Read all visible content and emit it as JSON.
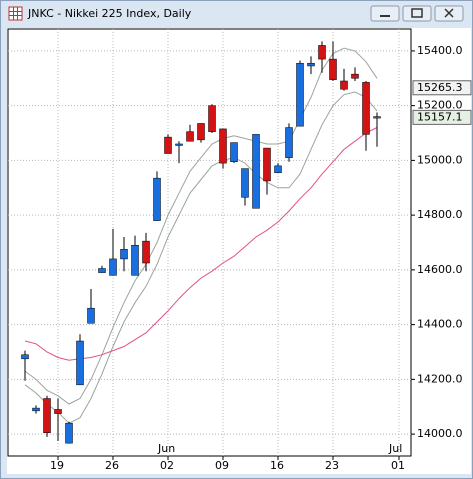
{
  "chart_data": {
    "type": "candlestick",
    "title": "JNKC - Nikkei 225 Index, Daily",
    "categories": [
      null,
      null,
      null,
      "19",
      null,
      null,
      null,
      null,
      "26",
      null,
      null,
      null,
      null,
      "02",
      null,
      null,
      null,
      null,
      "09",
      null,
      null,
      null,
      null,
      "16",
      null,
      null,
      null,
      null,
      "23",
      null,
      null,
      null,
      null,
      null,
      "01"
    ],
    "open": [
      14275,
      14085,
      14130,
      14090,
      13967,
      14180,
      14405,
      14590,
      14580,
      14640,
      14580,
      14705,
      14780,
      15085,
      15055,
      15105,
      15135,
      15200,
      15115,
      14995,
      14865,
      14825,
      15045,
      14955,
      15010,
      15125,
      15345,
      15420,
      15370,
      15290,
      15315,
      15285,
      15155,
      null,
      null
    ],
    "high": [
      14305,
      14105,
      14140,
      14130,
      14045,
      14365,
      14530,
      14615,
      14750,
      14720,
      14725,
      14735,
      14960,
      15095,
      15070,
      15130,
      15135,
      15205,
      15115,
      15065,
      14970,
      15095,
      15045,
      14990,
      15135,
      15365,
      15380,
      15435,
      15435,
      15335,
      15340,
      15290,
      15175,
      null,
      null
    ],
    "low": [
      14195,
      14075,
      13990,
      13975,
      13965,
      14180,
      14405,
      14590,
      14580,
      14595,
      14580,
      14595,
      14780,
      15025,
      14990,
      15070,
      15065,
      15100,
      14970,
      14990,
      14835,
      14825,
      14875,
      14955,
      14995,
      15125,
      15315,
      15320,
      15290,
      15255,
      15290,
      15035,
      15050,
      null,
      null
    ],
    "close": [
      14290,
      14095,
      14005,
      14075,
      14040,
      14340,
      14460,
      14605,
      14640,
      14675,
      14690,
      14625,
      14935,
      15025,
      15060,
      15070,
      15075,
      15105,
      14990,
      15065,
      14970,
      15095,
      14925,
      14980,
      15120,
      15355,
      15355,
      15370,
      15295,
      15260,
      15300,
      15095,
      15160,
      null,
      null
    ],
    "up_color": "#1a6fe0",
    "down_color": "#d41414",
    "lines": [
      {
        "color": "#9aa59a",
        "values": [
          14230,
          14200,
          14160,
          14140,
          14110,
          14130,
          14200,
          14290,
          14390,
          14480,
          14560,
          14620,
          14700,
          14800,
          14880,
          14960,
          15010,
          15060,
          15080,
          15090,
          15080,
          15070,
          15060,
          15060,
          15070,
          15150,
          15230,
          15330,
          15390,
          15410,
          15400,
          15360,
          15300,
          null,
          null
        ]
      },
      {
        "color": "#9aa59a",
        "values": [
          14180,
          14150,
          14110,
          14080,
          14040,
          14060,
          14130,
          14220,
          14320,
          14410,
          14480,
          14540,
          14620,
          14720,
          14800,
          14880,
          14930,
          14980,
          15000,
          15010,
          14990,
          14950,
          14920,
          14900,
          14900,
          14950,
          15040,
          15130,
          15200,
          15240,
          15250,
          15230,
          15180,
          null,
          null
        ]
      },
      {
        "color": "#e0508a",
        "values": [
          14340,
          14330,
          14300,
          14280,
          14270,
          14275,
          14280,
          14290,
          14305,
          14320,
          14345,
          14370,
          14410,
          14450,
          14495,
          14535,
          14570,
          14595,
          14625,
          14650,
          14685,
          14720,
          14745,
          14775,
          14815,
          14860,
          14900,
          14950,
          14995,
          15040,
          15070,
          15100,
          15120,
          null,
          null
        ]
      }
    ],
    "ylim": [
      13920,
      15480
    ],
    "yticks": [
      {
        "value": 14000,
        "label": "14000.0"
      },
      {
        "value": 14200,
        "label": "14200.0"
      },
      {
        "value": 14400,
        "label": "14400.0"
      },
      {
        "value": 14600,
        "label": "14600.0"
      },
      {
        "value": 14800,
        "label": "14800.0"
      },
      {
        "value": 15000,
        "label": "15000.0"
      },
      {
        "value": 15200,
        "label": "15200.0"
      },
      {
        "value": 15400,
        "label": "15400.0"
      }
    ],
    "grid": true,
    "month_labels": [
      {
        "index": 13,
        "label": "Jun"
      },
      {
        "index": 34,
        "label": "Jul"
      }
    ],
    "price_labels": [
      15265.3,
      15157.1
    ]
  }
}
